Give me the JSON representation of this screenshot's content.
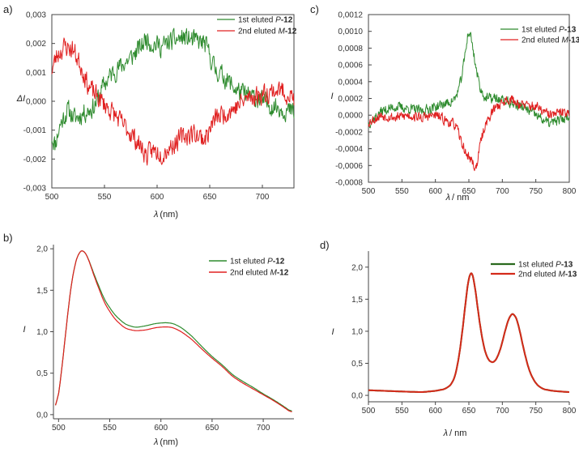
{
  "figure": {
    "panel_labels": [
      "a)",
      "b)",
      "c)",
      "d)"
    ]
  },
  "colors": {
    "green": "#2e8b2e",
    "red": "#e02020",
    "dark_green": "#2a6a1e",
    "dark_red": "#d42a1a"
  },
  "chart_data": [
    {
      "id": "a",
      "type": "line",
      "xlabel_main": "λ",
      "xlabel_unit": "(nm)",
      "ylabel": "ΔI",
      "xlim": [
        500,
        730
      ],
      "ylim": [
        -0.003,
        0.003
      ],
      "xticks": [
        500,
        550,
        600,
        650,
        700
      ],
      "xtick_labels": [
        "500",
        "550",
        "600",
        "650",
        "700"
      ],
      "yticks": [
        -0.003,
        -0.002,
        -0.001,
        0,
        0.001,
        0.002,
        0.003
      ],
      "ytick_labels": [
        "-0,003",
        "-0,002",
        "-0,001",
        "0,000",
        "0,001",
        "0,002",
        "0,003"
      ],
      "noise": 0.00035,
      "series": [
        {
          "name": "1st eluted P-12",
          "prefix": "1st eluted ",
          "italic": "P",
          "bold": "-12",
          "color": "#2e8b2e",
          "seed": 11,
          "x": [
            500,
            503,
            508,
            515,
            522,
            530,
            540,
            550,
            558,
            565,
            575,
            585,
            590,
            595,
            605,
            615,
            625,
            635,
            645,
            650,
            655,
            665,
            675,
            685,
            695,
            705,
            715,
            722,
            730
          ],
          "y": [
            -0.0012,
            -0.0015,
            -0.0008,
            -0.0003,
            -0.0006,
            -0.0004,
            -0.0002,
            0.0006,
            0.001,
            0.0012,
            0.0015,
            0.0019,
            0.0022,
            0.002,
            0.0019,
            0.0021,
            0.0022,
            0.0021,
            0.002,
            0.0016,
            0.0011,
            0.0008,
            0.0004,
            0.0002,
            0.0001,
            -0.0001,
            -0.0002,
            -0.0003,
            -0.0004
          ]
        },
        {
          "name": "2nd eluted M-12",
          "prefix": "2nd eluted ",
          "italic": "M",
          "bold": "-12",
          "color": "#e02020",
          "seed": 23,
          "x": [
            500,
            505,
            512,
            520,
            528,
            535,
            542,
            550,
            558,
            565,
            575,
            585,
            590,
            595,
            605,
            615,
            625,
            635,
            645,
            650,
            655,
            665,
            675,
            685,
            695,
            705,
            715,
            722,
            730
          ],
          "y": [
            0.0011,
            0.0016,
            0.0019,
            0.0018,
            0.0012,
            0.0005,
            0.0002,
            -0.0001,
            -0.0004,
            -0.0007,
            -0.0011,
            -0.0016,
            -0.0019,
            -0.0017,
            -0.0018,
            -0.0015,
            -0.0012,
            -0.0011,
            -0.0013,
            -0.001,
            -0.0006,
            -0.0004,
            -0.0002,
            0.0001,
            0.0002,
            0.0003,
            0.0004,
            0.0003,
            0.0001
          ]
        }
      ]
    },
    {
      "id": "b",
      "type": "line",
      "xlabel_main": "λ",
      "xlabel_unit": "(nm)",
      "ylabel": "I",
      "xlim": [
        495,
        730
      ],
      "ylim": [
        -0.05,
        2.05
      ],
      "xticks": [
        500,
        550,
        600,
        650,
        700
      ],
      "xtick_labels": [
        "500",
        "550",
        "600",
        "650",
        "700"
      ],
      "yticks": [
        0,
        0.5,
        1.0,
        1.5,
        2.0
      ],
      "ytick_labels": [
        "0,0",
        "0,5",
        "1,0",
        "1,5",
        "2,0"
      ],
      "noise": 0,
      "series": [
        {
          "name": "1st eluted P-12",
          "prefix": "1st eluted ",
          "italic": "P",
          "bold": "-12",
          "color": "#2e8b2e",
          "x": [
            497,
            500,
            505,
            510,
            515,
            520,
            524,
            528,
            535,
            545,
            555,
            565,
            575,
            585,
            595,
            605,
            612,
            620,
            630,
            640,
            650,
            660,
            670,
            680,
            690,
            700,
            710,
            720,
            728
          ],
          "y": [
            0.0,
            0.22,
            0.75,
            1.35,
            1.78,
            1.97,
            1.99,
            1.92,
            1.68,
            1.38,
            1.2,
            1.09,
            1.05,
            1.07,
            1.1,
            1.11,
            1.1,
            1.05,
            0.95,
            0.82,
            0.7,
            0.6,
            0.48,
            0.4,
            0.33,
            0.25,
            0.18,
            0.1,
            0.03
          ]
        },
        {
          "name": "2nd eluted M-12",
          "prefix": "2nd eluted ",
          "italic": "M",
          "bold": "-12",
          "color": "#e02020",
          "x": [
            497,
            500,
            505,
            510,
            515,
            520,
            524,
            528,
            535,
            545,
            555,
            565,
            575,
            585,
            595,
            605,
            612,
            620,
            630,
            640,
            650,
            660,
            670,
            680,
            690,
            700,
            710,
            720,
            728
          ],
          "y": [
            0.0,
            0.22,
            0.75,
            1.35,
            1.78,
            1.97,
            1.99,
            1.92,
            1.66,
            1.34,
            1.15,
            1.04,
            1.01,
            1.02,
            1.05,
            1.06,
            1.05,
            1.0,
            0.91,
            0.79,
            0.68,
            0.58,
            0.46,
            0.38,
            0.31,
            0.24,
            0.17,
            0.09,
            0.02
          ]
        }
      ]
    },
    {
      "id": "c",
      "type": "line",
      "xlabel_main": "λ",
      "xlabel_unit": "/ nm",
      "ylabel": "I",
      "xlim": [
        500,
        800
      ],
      "ylim": [
        -0.0008,
        0.0012
      ],
      "xticks": [
        500,
        550,
        600,
        650,
        700,
        750,
        800
      ],
      "xtick_labels": [
        "500",
        "550",
        "600",
        "650",
        "700",
        "750",
        "800"
      ],
      "yticks": [
        -0.0008,
        -0.0006,
        -0.0004,
        -0.0002,
        0,
        0.0002,
        0.0004,
        0.0006,
        0.0008,
        0.001,
        0.0012
      ],
      "ytick_labels": [
        "-0,0008",
        "-0,0006",
        "-0,0004",
        "-0,0002",
        "0,0000",
        "0,0002",
        "0,0004",
        "0,0006",
        "0,0008",
        "0,0010",
        "0,0012"
      ],
      "noise": 6e-05,
      "series": [
        {
          "name": "1st eluted P-13",
          "prefix": "1st eluted ",
          "italic": "P",
          "bold": "-13",
          "color": "#2e8b2e",
          "seed": 37,
          "x": [
            500,
            520,
            540,
            560,
            580,
            600,
            620,
            630,
            638,
            644,
            648,
            652,
            656,
            662,
            668,
            675,
            690,
            710,
            730,
            750,
            770,
            790,
            800
          ],
          "y": [
            -0.0001,
            5e-05,
            0.0001,
            8e-05,
            5e-05,
            0.0001,
            0.00015,
            0.0002,
            0.0004,
            0.0007,
            0.00095,
            0.00098,
            0.0008,
            0.0005,
            0.0003,
            0.0002,
            0.0002,
            0.00015,
            0.0001,
            0.0,
            -0.0001,
            -5e-05,
            0.0
          ]
        },
        {
          "name": "2nd eluted M-13",
          "prefix": "2nd eluted ",
          "italic": "M",
          "bold": "-13",
          "color": "#e02020",
          "seed": 53,
          "x": [
            500,
            520,
            540,
            560,
            580,
            600,
            620,
            630,
            638,
            645,
            650,
            655,
            660,
            664,
            668,
            675,
            690,
            710,
            730,
            750,
            770,
            790,
            800
          ],
          "y": [
            -8e-05,
            0.0,
            -3e-05,
            0.0,
            -3e-05,
            0.0,
            -8e-05,
            -0.00012,
            -0.0003,
            -0.00045,
            -0.0005,
            -0.00055,
            -0.00065,
            -0.0005,
            -0.0003,
            -0.0001,
            0.0001,
            0.0002,
            0.00012,
            0.0001,
            0.0,
            3e-05,
            5e-05
          ]
        }
      ]
    },
    {
      "id": "d",
      "type": "line",
      "xlabel_main": "λ",
      "xlabel_unit": "/ nm",
      "ylabel": "I",
      "xlim": [
        500,
        800
      ],
      "ylim": [
        -0.1,
        2.25
      ],
      "xticks": [
        500,
        550,
        600,
        650,
        700,
        750,
        800
      ],
      "xtick_labels": [
        "500",
        "550",
        "600",
        "650",
        "700",
        "750",
        "800"
      ],
      "yticks": [
        0,
        0.5,
        1.0,
        1.5,
        2.0
      ],
      "ytick_labels": [
        "0,0",
        "0,5",
        "1,0",
        "1,5",
        "2,0"
      ],
      "noise": 0,
      "series": [
        {
          "name": "1st eluted P-13",
          "prefix": "1st eluted ",
          "italic": "P",
          "bold": "-13",
          "color": "#2a6a1e",
          "x": [
            500,
            550,
            580,
            600,
            615,
            625,
            632,
            640,
            647,
            652,
            657,
            662,
            670,
            678,
            688,
            697,
            705,
            712,
            718,
            724,
            730,
            740,
            750,
            760,
            775,
            800
          ],
          "y": [
            0.08,
            0.06,
            0.05,
            0.07,
            0.1,
            0.18,
            0.38,
            0.95,
            1.65,
            1.98,
            1.88,
            1.45,
            0.85,
            0.55,
            0.5,
            0.7,
            1.05,
            1.27,
            1.28,
            1.12,
            0.8,
            0.38,
            0.18,
            0.1,
            0.07,
            0.05
          ]
        },
        {
          "name": "2nd eluted M-13",
          "prefix": "2nd eluted ",
          "italic": "M",
          "bold": "-13",
          "color": "#d42a1a",
          "x": [
            500,
            550,
            580,
            600,
            615,
            625,
            632,
            640,
            647,
            652,
            657,
            662,
            670,
            678,
            688,
            697,
            705,
            712,
            718,
            724,
            730,
            740,
            750,
            760,
            775,
            800
          ],
          "y": [
            0.08,
            0.06,
            0.05,
            0.07,
            0.1,
            0.18,
            0.38,
            0.95,
            1.65,
            1.98,
            1.88,
            1.45,
            0.85,
            0.55,
            0.5,
            0.7,
            1.05,
            1.27,
            1.28,
            1.12,
            0.8,
            0.38,
            0.18,
            0.1,
            0.07,
            0.05
          ]
        }
      ]
    }
  ]
}
